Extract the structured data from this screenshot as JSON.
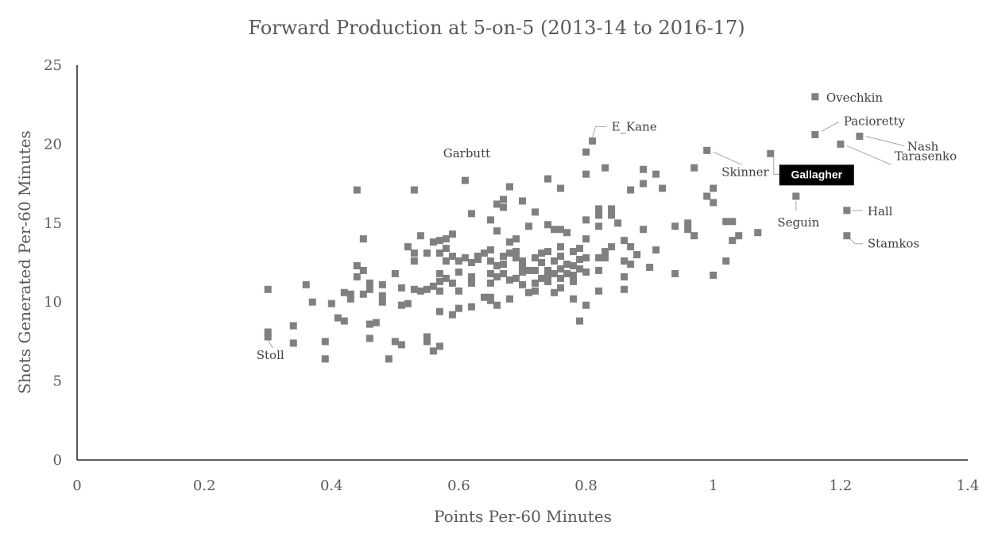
{
  "chart_data": {
    "type": "scatter",
    "title": "Forward Production at 5-on-5 (2013-14 to 2016-17)",
    "xlabel": "Points Per-60 Minutes",
    "ylabel": "Shots Generated Per-60 Minutes",
    "xlim": [
      0,
      1.4
    ],
    "ylim": [
      0,
      25
    ],
    "x_ticks": [
      "0",
      "0.2",
      "0.4",
      "0.6",
      "0.8",
      "1",
      "1.2",
      "1.4"
    ],
    "y_ticks": [
      "0",
      "5",
      "10",
      "15",
      "20",
      "25"
    ],
    "grid": false,
    "colors": {
      "marker": "#808080",
      "text": "#595959",
      "highlight_bg": "#000000",
      "highlight_text": "#ffffff"
    },
    "labeled_points": [
      {
        "name": "Ovechkin",
        "x": 1.16,
        "y": 23.0
      },
      {
        "name": "Pacioretty",
        "x": 1.16,
        "y": 20.6
      },
      {
        "name": "Nash",
        "x": 1.23,
        "y": 20.5
      },
      {
        "name": "Tarasenko",
        "x": 1.2,
        "y": 20.0
      },
      {
        "name": "Skinner",
        "x": 0.99,
        "y": 19.6
      },
      {
        "name": "Gallagher",
        "x": 1.09,
        "y": 19.4,
        "highlight": true
      },
      {
        "name": "Seguin",
        "x": 1.13,
        "y": 16.7
      },
      {
        "name": "Hall",
        "x": 1.21,
        "y": 15.8
      },
      {
        "name": "Stamkos",
        "x": 1.21,
        "y": 14.2
      },
      {
        "name": "E_Kane",
        "x": 0.81,
        "y": 20.2
      },
      {
        "name": "Garbutt",
        "x": 0.61,
        "y": 17.7
      },
      {
        "name": "Stoll",
        "x": 0.3,
        "y": 7.8
      }
    ],
    "points": [
      [
        0.3,
        10.8
      ],
      [
        0.3,
        8.1
      ],
      [
        0.34,
        8.5
      ],
      [
        0.34,
        7.4
      ],
      [
        0.36,
        11.1
      ],
      [
        0.37,
        10.0
      ],
      [
        0.39,
        7.5
      ],
      [
        0.39,
        6.4
      ],
      [
        0.4,
        9.9
      ],
      [
        0.41,
        9.0
      ],
      [
        0.42,
        8.8
      ],
      [
        0.42,
        10.6
      ],
      [
        0.43,
        10.2
      ],
      [
        0.43,
        10.5
      ],
      [
        0.44,
        17.1
      ],
      [
        0.44,
        12.3
      ],
      [
        0.44,
        11.6
      ],
      [
        0.45,
        12.0
      ],
      [
        0.45,
        14.0
      ],
      [
        0.45,
        10.5
      ],
      [
        0.46,
        11.2
      ],
      [
        0.46,
        10.8
      ],
      [
        0.46,
        8.6
      ],
      [
        0.46,
        7.7
      ],
      [
        0.47,
        8.7
      ],
      [
        0.48,
        11.1
      ],
      [
        0.48,
        10.4
      ],
      [
        0.48,
        10.0
      ],
      [
        0.49,
        6.4
      ],
      [
        0.5,
        11.8
      ],
      [
        0.5,
        7.5
      ],
      [
        0.51,
        10.9
      ],
      [
        0.51,
        9.8
      ],
      [
        0.51,
        7.3
      ],
      [
        0.52,
        13.5
      ],
      [
        0.52,
        9.9
      ],
      [
        0.53,
        17.1
      ],
      [
        0.53,
        13.1
      ],
      [
        0.53,
        12.6
      ],
      [
        0.53,
        10.8
      ],
      [
        0.54,
        14.2
      ],
      [
        0.54,
        10.7
      ],
      [
        0.55,
        13.1
      ],
      [
        0.55,
        10.8
      ],
      [
        0.55,
        7.8
      ],
      [
        0.55,
        7.5
      ],
      [
        0.56,
        13.8
      ],
      [
        0.56,
        11.0
      ],
      [
        0.56,
        6.9
      ],
      [
        0.57,
        13.9
      ],
      [
        0.57,
        13.1
      ],
      [
        0.57,
        11.8
      ],
      [
        0.57,
        11.3
      ],
      [
        0.57,
        10.7
      ],
      [
        0.57,
        9.4
      ],
      [
        0.57,
        7.2
      ],
      [
        0.58,
        14.0
      ],
      [
        0.58,
        13.4
      ],
      [
        0.58,
        12.6
      ],
      [
        0.58,
        11.5
      ],
      [
        0.59,
        14.3
      ],
      [
        0.59,
        12.9
      ],
      [
        0.59,
        11.2
      ],
      [
        0.59,
        9.2
      ],
      [
        0.6,
        12.6
      ],
      [
        0.6,
        11.9
      ],
      [
        0.6,
        10.7
      ],
      [
        0.6,
        9.6
      ],
      [
        0.61,
        12.8
      ],
      [
        0.62,
        15.6
      ],
      [
        0.62,
        12.5
      ],
      [
        0.62,
        11.6
      ],
      [
        0.62,
        11.2
      ],
      [
        0.62,
        9.7
      ],
      [
        0.63,
        12.9
      ],
      [
        0.63,
        12.7
      ],
      [
        0.64,
        13.1
      ],
      [
        0.64,
        10.3
      ],
      [
        0.65,
        15.2
      ],
      [
        0.65,
        13.3
      ],
      [
        0.65,
        12.6
      ],
      [
        0.65,
        11.8
      ],
      [
        0.65,
        11.2
      ],
      [
        0.65,
        10.3
      ],
      [
        0.65,
        10.1
      ],
      [
        0.66,
        16.2
      ],
      [
        0.66,
        14.5
      ],
      [
        0.66,
        12.3
      ],
      [
        0.66,
        11.6
      ],
      [
        0.66,
        9.8
      ],
      [
        0.67,
        16.5
      ],
      [
        0.67,
        16.0
      ],
      [
        0.67,
        12.9
      ],
      [
        0.67,
        12.4
      ],
      [
        0.67,
        11.8
      ],
      [
        0.68,
        17.3
      ],
      [
        0.68,
        13.8
      ],
      [
        0.68,
        13.1
      ],
      [
        0.68,
        11.4
      ],
      [
        0.68,
        10.2
      ],
      [
        0.69,
        14.0
      ],
      [
        0.69,
        13.2
      ],
      [
        0.69,
        12.8
      ],
      [
        0.69,
        11.5
      ],
      [
        0.7,
        16.4
      ],
      [
        0.7,
        12.6
      ],
      [
        0.7,
        12.2
      ],
      [
        0.7,
        11.9
      ],
      [
        0.7,
        11.1
      ],
      [
        0.71,
        14.8
      ],
      [
        0.71,
        12.0
      ],
      [
        0.71,
        10.6
      ],
      [
        0.72,
        15.7
      ],
      [
        0.72,
        12.8
      ],
      [
        0.72,
        12.0
      ],
      [
        0.72,
        11.2
      ],
      [
        0.72,
        10.7
      ],
      [
        0.73,
        13.1
      ],
      [
        0.73,
        12.5
      ],
      [
        0.73,
        11.5
      ],
      [
        0.74,
        17.8
      ],
      [
        0.74,
        14.9
      ],
      [
        0.74,
        13.2
      ],
      [
        0.74,
        12.0
      ],
      [
        0.74,
        11.7
      ],
      [
        0.74,
        11.3
      ],
      [
        0.75,
        14.6
      ],
      [
        0.75,
        12.6
      ],
      [
        0.75,
        11.8
      ],
      [
        0.75,
        10.6
      ],
      [
        0.76,
        17.2
      ],
      [
        0.76,
        14.6
      ],
      [
        0.76,
        13.5
      ],
      [
        0.76,
        12.9
      ],
      [
        0.76,
        12.1
      ],
      [
        0.76,
        11.5
      ],
      [
        0.76,
        10.9
      ],
      [
        0.77,
        14.4
      ],
      [
        0.77,
        12.4
      ],
      [
        0.77,
        11.8
      ],
      [
        0.78,
        13.2
      ],
      [
        0.78,
        12.3
      ],
      [
        0.78,
        11.7
      ],
      [
        0.78,
        11.3
      ],
      [
        0.78,
        10.2
      ],
      [
        0.79,
        13.4
      ],
      [
        0.79,
        12.7
      ],
      [
        0.79,
        12.1
      ],
      [
        0.79,
        8.8
      ],
      [
        0.8,
        19.5
      ],
      [
        0.8,
        18.1
      ],
      [
        0.8,
        15.2
      ],
      [
        0.8,
        14.0
      ],
      [
        0.8,
        12.8
      ],
      [
        0.8,
        11.9
      ],
      [
        0.8,
        9.8
      ],
      [
        0.82,
        15.9
      ],
      [
        0.82,
        15.5
      ],
      [
        0.82,
        14.8
      ],
      [
        0.82,
        12.8
      ],
      [
        0.82,
        12.0
      ],
      [
        0.82,
        10.7
      ],
      [
        0.83,
        18.5
      ],
      [
        0.83,
        13.2
      ],
      [
        0.83,
        12.8
      ],
      [
        0.84,
        15.9
      ],
      [
        0.84,
        15.5
      ],
      [
        0.84,
        13.5
      ],
      [
        0.85,
        15.0
      ],
      [
        0.86,
        13.9
      ],
      [
        0.86,
        12.6
      ],
      [
        0.86,
        11.6
      ],
      [
        0.86,
        10.8
      ],
      [
        0.87,
        17.1
      ],
      [
        0.87,
        13.5
      ],
      [
        0.87,
        12.4
      ],
      [
        0.88,
        13.0
      ],
      [
        0.89,
        18.4
      ],
      [
        0.89,
        17.5
      ],
      [
        0.89,
        14.6
      ],
      [
        0.9,
        12.2
      ],
      [
        0.91,
        18.1
      ],
      [
        0.91,
        13.3
      ],
      [
        0.92,
        17.2
      ],
      [
        0.94,
        14.8
      ],
      [
        0.94,
        11.8
      ],
      [
        0.96,
        15.0
      ],
      [
        0.96,
        14.6
      ],
      [
        0.97,
        18.5
      ],
      [
        0.97,
        14.2
      ],
      [
        0.99,
        16.7
      ],
      [
        1.0,
        17.2
      ],
      [
        1.0,
        16.3
      ],
      [
        1.0,
        11.7
      ],
      [
        1.02,
        15.1
      ],
      [
        1.02,
        12.6
      ],
      [
        1.03,
        15.1
      ],
      [
        1.03,
        13.9
      ],
      [
        1.04,
        14.2
      ],
      [
        1.07,
        14.4
      ]
    ]
  }
}
